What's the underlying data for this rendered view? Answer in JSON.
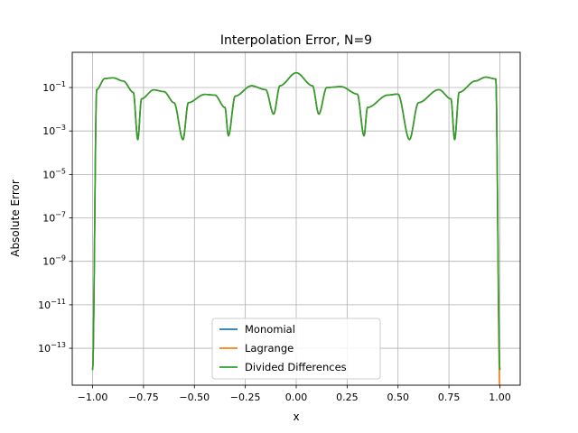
{
  "chart_data": {
    "type": "line",
    "title": "Interpolation Error, N=9",
    "xlabel": "x",
    "ylabel": "Absolute Error",
    "yscale": "log",
    "xlim": [
      -1.1,
      1.1
    ],
    "ylim_exp": [
      -14.7,
      0.62
    ],
    "grid": true,
    "legend_position": "lower center",
    "x_ticks": [
      -1.0,
      -0.75,
      -0.5,
      -0.25,
      0.0,
      0.25,
      0.5,
      0.75,
      1.0
    ],
    "x_tick_labels": [
      "−1.00",
      "−0.75",
      "−0.50",
      "−0.25",
      "0.00",
      "0.25",
      "0.50",
      "0.75",
      "1.00"
    ],
    "y_tick_exponents": [
      -13,
      -11,
      -9,
      -7,
      -5,
      -3,
      -1
    ],
    "y_tick_labels": [
      "10",
      "10",
      "10",
      "10",
      "10",
      "10",
      "10"
    ],
    "y_tick_superscripts": [
      "−13",
      "−11",
      "−9",
      "−7",
      "−5",
      "−3",
      "−1"
    ],
    "nodes": [
      -1.0,
      -0.778,
      -0.556,
      -0.333,
      -0.111,
      0.111,
      0.333,
      0.556,
      0.778,
      1.0
    ],
    "series": [
      {
        "name": "Monomial",
        "color": "#1f77b4",
        "x": [
          -1.0,
          -0.98,
          -0.94,
          -0.9,
          -0.85,
          -0.8,
          -0.778,
          -0.76,
          -0.7,
          -0.65,
          -0.6,
          -0.556,
          -0.53,
          -0.45,
          -0.4,
          -0.35,
          -0.333,
          -0.3,
          -0.22,
          -0.15,
          -0.111,
          -0.08,
          0.0,
          0.08,
          0.111,
          0.15,
          0.22,
          0.3,
          0.333,
          0.35,
          0.45,
          0.5,
          0.556,
          0.6,
          0.7,
          0.76,
          0.778,
          0.8,
          0.88,
          0.93,
          0.98,
          1.0
        ],
        "y": [
          1e-14,
          0.08,
          0.26,
          0.28,
          0.2,
          0.06,
          0.0004,
          0.03,
          0.078,
          0.065,
          0.02,
          0.0004,
          0.02,
          0.048,
          0.045,
          0.012,
          0.0006,
          0.04,
          0.12,
          0.08,
          0.006,
          0.12,
          0.48,
          0.12,
          0.006,
          0.1,
          0.11,
          0.05,
          0.0006,
          0.012,
          0.045,
          0.05,
          0.0004,
          0.02,
          0.08,
          0.03,
          0.0004,
          0.06,
          0.2,
          0.3,
          0.25,
          1e-14
        ]
      },
      {
        "name": "Lagrange",
        "color": "#ff7f0e",
        "x": [
          -1.0,
          -0.98,
          -0.94,
          -0.9,
          -0.85,
          -0.8,
          -0.778,
          -0.76,
          -0.7,
          -0.65,
          -0.6,
          -0.556,
          -0.53,
          -0.45,
          -0.4,
          -0.35,
          -0.333,
          -0.3,
          -0.22,
          -0.15,
          -0.111,
          -0.08,
          0.0,
          0.08,
          0.111,
          0.15,
          0.22,
          0.3,
          0.333,
          0.35,
          0.45,
          0.5,
          0.556,
          0.6,
          0.7,
          0.76,
          0.778,
          0.8,
          0.88,
          0.93,
          0.98,
          1.0
        ],
        "y": [
          1e-14,
          0.08,
          0.26,
          0.28,
          0.2,
          0.06,
          0.0004,
          0.03,
          0.078,
          0.065,
          0.02,
          0.0004,
          0.02,
          0.048,
          0.045,
          0.012,
          0.0006,
          0.04,
          0.12,
          0.08,
          0.006,
          0.12,
          0.48,
          0.12,
          0.006,
          0.1,
          0.11,
          0.05,
          0.0006,
          0.012,
          0.045,
          0.05,
          0.0004,
          0.02,
          0.08,
          0.03,
          0.0004,
          0.06,
          0.2,
          0.3,
          0.25,
          1e-15
        ]
      },
      {
        "name": "Divided Differences",
        "color": "#2ca02c",
        "x": [
          -1.0,
          -0.98,
          -0.94,
          -0.9,
          -0.85,
          -0.8,
          -0.778,
          -0.76,
          -0.7,
          -0.65,
          -0.6,
          -0.556,
          -0.53,
          -0.45,
          -0.4,
          -0.35,
          -0.333,
          -0.3,
          -0.22,
          -0.15,
          -0.111,
          -0.08,
          0.0,
          0.08,
          0.111,
          0.15,
          0.22,
          0.3,
          0.333,
          0.35,
          0.45,
          0.5,
          0.556,
          0.6,
          0.7,
          0.76,
          0.778,
          0.8,
          0.88,
          0.93,
          0.98,
          1.0
        ],
        "y": [
          1e-14,
          0.08,
          0.26,
          0.28,
          0.2,
          0.06,
          0.0004,
          0.03,
          0.078,
          0.065,
          0.02,
          0.0004,
          0.02,
          0.048,
          0.045,
          0.012,
          0.0006,
          0.04,
          0.12,
          0.08,
          0.006,
          0.12,
          0.48,
          0.12,
          0.006,
          0.1,
          0.11,
          0.05,
          0.0006,
          0.012,
          0.045,
          0.05,
          0.0004,
          0.02,
          0.08,
          0.03,
          0.0004,
          0.06,
          0.2,
          0.3,
          0.25,
          1e-14
        ]
      }
    ]
  }
}
